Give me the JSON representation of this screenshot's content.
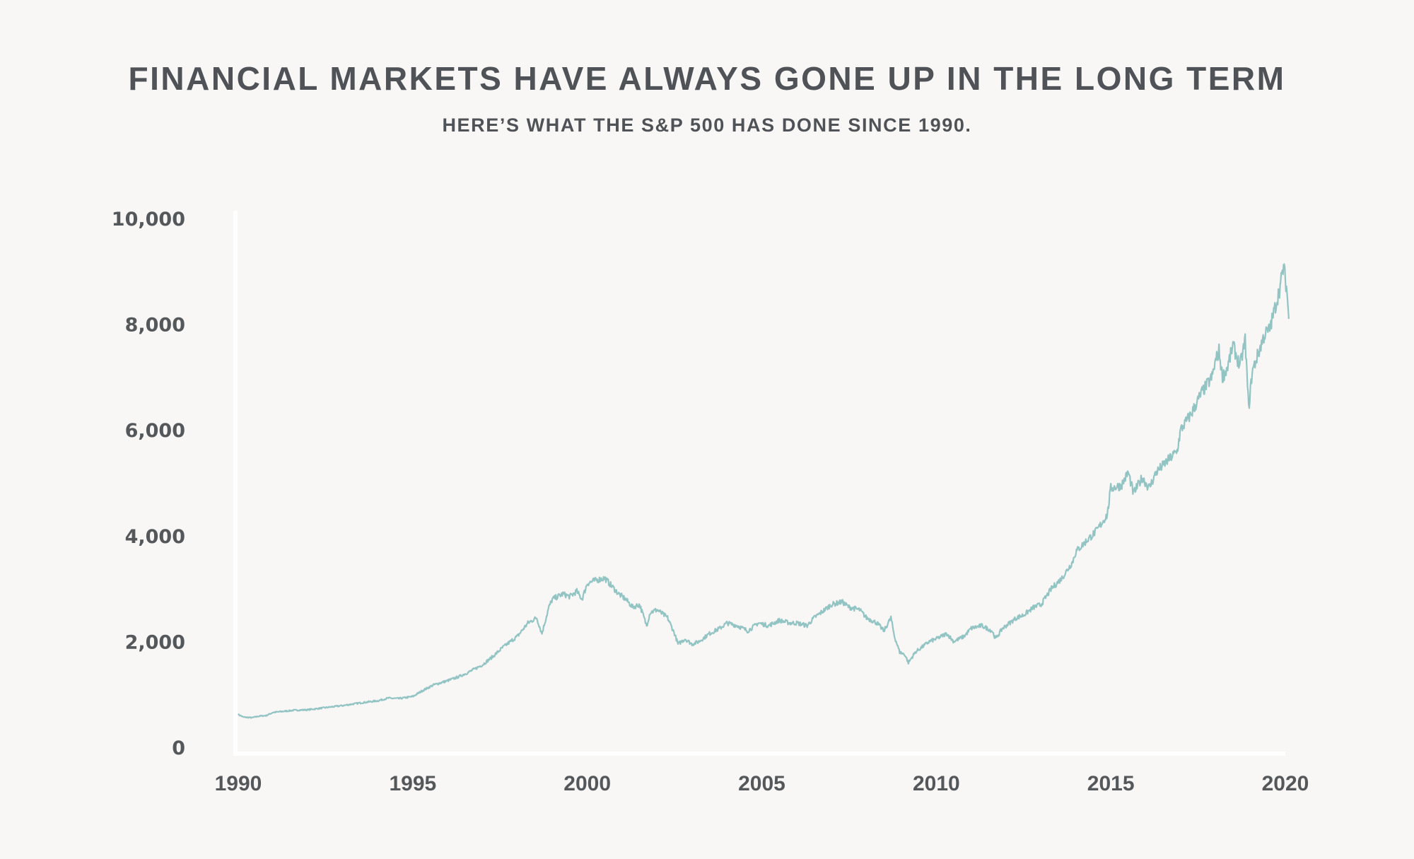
{
  "header": {
    "title": "FINANCIAL MARKETS HAVE ALWAYS GONE UP IN THE LONG TERM",
    "subtitle": "HERE’S WHAT THE S&P 500 HAS DONE SINCE 1990."
  },
  "chart_data": {
    "type": "line",
    "title": "FINANCIAL MARKETS HAVE ALWAYS GONE UP IN THE LONG TERM",
    "subtitle": "HERE’S WHAT THE S&P 500 HAS DONE SINCE 1990.",
    "xlabel": "",
    "ylabel": "",
    "xlim": [
      1990,
      2020
    ],
    "ylim": [
      0,
      10000
    ],
    "x_ticks": [
      1990,
      1995,
      2000,
      2005,
      2010,
      2015,
      2020
    ],
    "x_tick_labels": [
      "1990",
      "1995",
      "2000",
      "2005",
      "2010",
      "2015",
      "2020"
    ],
    "y_ticks": [
      0,
      2000,
      4000,
      6000,
      8000,
      10000
    ],
    "y_tick_labels": [
      "0",
      "2,000",
      "4,000",
      "6,000",
      "8,000",
      "10,000"
    ],
    "grid": false,
    "legend": "none",
    "line_color": "#93c4c4",
    "axis_color": "#ffffff",
    "series": [
      {
        "name": "S&P 500",
        "x": [
          1990.0,
          1990.15,
          1990.4,
          1990.6,
          1990.8,
          1991.0,
          1991.3,
          1991.6,
          1992.0,
          1992.5,
          1993.0,
          1993.5,
          1994.0,
          1994.3,
          1994.6,
          1995.0,
          1995.3,
          1995.6,
          1996.0,
          1996.3,
          1996.6,
          1997.0,
          1997.3,
          1997.6,
          1997.8,
          1998.0,
          1998.3,
          1998.55,
          1998.7,
          1998.9,
          1999.0,
          1999.3,
          1999.5,
          1999.7,
          1999.85,
          2000.0,
          2000.2,
          2000.5,
          2000.7,
          2000.9,
          2001.1,
          2001.3,
          2001.5,
          2001.7,
          2001.8,
          2002.0,
          2002.3,
          2002.5,
          2002.6,
          2002.8,
          2003.0,
          2003.2,
          2003.5,
          2003.8,
          2004.0,
          2004.3,
          2004.6,
          2004.9,
          2005.2,
          2005.5,
          2005.8,
          2006.0,
          2006.3,
          2006.5,
          2006.8,
          2007.0,
          2007.3,
          2007.5,
          2007.8,
          2008.0,
          2008.3,
          2008.5,
          2008.7,
          2008.8,
          2008.95,
          2009.1,
          2009.2,
          2009.4,
          2009.6,
          2009.8,
          2010.0,
          2010.3,
          2010.5,
          2010.8,
          2011.0,
          2011.3,
          2011.6,
          2011.7,
          2011.9,
          2012.0,
          2012.3,
          2012.5,
          2012.8,
          2013.0,
          2013.3,
          2013.6,
          2013.9,
          2014.0,
          2014.3,
          2014.6,
          2014.9,
          2015.0,
          2015.3,
          2015.5,
          2015.65,
          2015.9,
          2016.1,
          2016.3,
          2016.6,
          2016.9,
          2017.0,
          2017.3,
          2017.6,
          2017.9,
          2018.0,
          2018.1,
          2018.2,
          2018.35,
          2018.5,
          2018.7,
          2018.85,
          2018.95,
          2019.05,
          2019.2,
          2019.4,
          2019.55,
          2019.7,
          2019.85,
          2019.95,
          2020.05,
          2020.1
        ],
        "values": [
          620,
          570,
          560,
          590,
          600,
          660,
          680,
          700,
          710,
          750,
          790,
          840,
          880,
          930,
          920,
          960,
          1080,
          1180,
          1260,
          1330,
          1420,
          1560,
          1720,
          1900,
          2000,
          2100,
          2350,
          2450,
          2150,
          2650,
          2800,
          2900,
          2850,
          2950,
          2800,
          3100,
          3150,
          3200,
          3050,
          2900,
          2800,
          2650,
          2700,
          2300,
          2550,
          2600,
          2450,
          2150,
          1950,
          2050,
          1950,
          2000,
          2150,
          2250,
          2350,
          2300,
          2200,
          2350,
          2300,
          2400,
          2350,
          2350,
          2300,
          2450,
          2600,
          2700,
          2750,
          2650,
          2600,
          2450,
          2350,
          2200,
          2450,
          2100,
          1800,
          1750,
          1600,
          1800,
          1900,
          2000,
          2050,
          2150,
          2000,
          2100,
          2250,
          2300,
          2200,
          2050,
          2250,
          2300,
          2450,
          2500,
          2650,
          2700,
          3000,
          3200,
          3500,
          3700,
          3900,
          4100,
          4400,
          4900,
          4950,
          5200,
          4800,
          5100,
          4900,
          5200,
          5400,
          5600,
          6000,
          6300,
          6700,
          7000,
          7300,
          7500,
          7000,
          7200,
          7600,
          7200,
          7700,
          6400,
          7100,
          7400,
          7800,
          7900,
          8300,
          8700,
          9100,
          8600,
          8100
        ]
      }
    ]
  }
}
